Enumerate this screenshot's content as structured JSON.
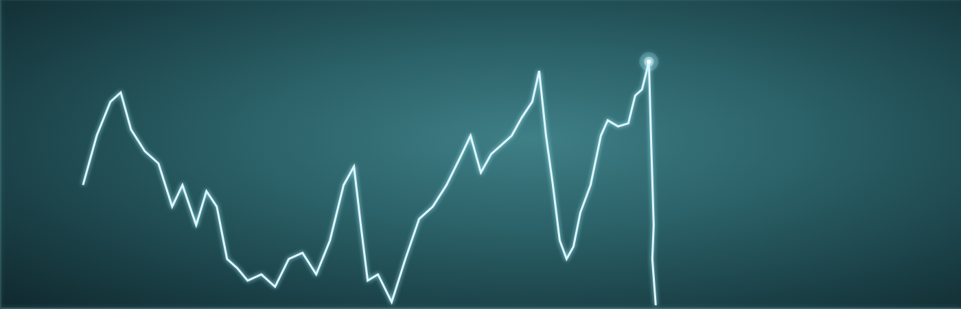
{
  "chart_data": {
    "type": "line",
    "x": [
      120,
      140,
      160,
      175,
      190,
      210,
      230,
      250,
      265,
      285,
      300,
      315,
      330,
      345,
      360,
      380,
      400,
      420,
      440,
      460,
      480,
      500,
      515,
      525,
      535,
      550,
      570,
      590,
      610,
      630,
      650,
      670,
      685,
      700,
      715,
      730,
      745,
      760,
      775,
      785,
      795,
      805,
      815,
      825,
      835,
      845,
      860,
      875,
      885,
      900,
      915,
      925,
      935,
      945,
      948,
      952,
      950,
      955
    ],
    "values": [
      40,
      56,
      67,
      70,
      58,
      51,
      47,
      33,
      40,
      27,
      38,
      33,
      16,
      13,
      9,
      11,
      7,
      16,
      18,
      11,
      22,
      40,
      46,
      27,
      9,
      11,
      2,
      16,
      29,
      33,
      40,
      49,
      56,
      44,
      50,
      53,
      56,
      62,
      67,
      77,
      56,
      40,
      22,
      16,
      20,
      31,
      40,
      56,
      61,
      59,
      60,
      69,
      71,
      80,
      56,
      27,
      16,
      1
    ],
    "color": "#dff6fa",
    "xlim": [
      0,
      1400
    ],
    "xticks": [
      0,
      1400
    ],
    "ylim": [
      0,
      100
    ],
    "yticks": [
      0,
      25,
      50,
      75,
      100
    ],
    "grid": true,
    "tick_labels": false,
    "marker": "none"
  }
}
